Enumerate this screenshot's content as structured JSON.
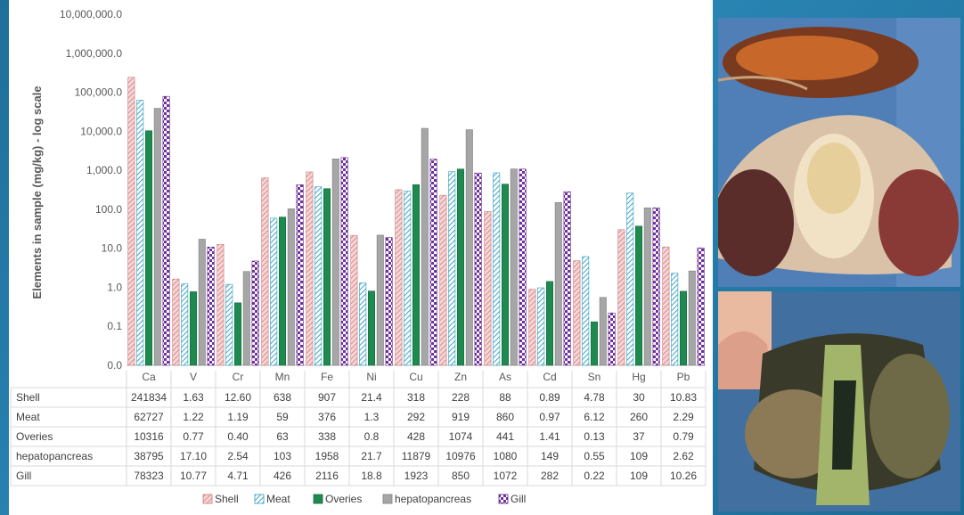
{
  "colors": {
    "background": "#2a86b5",
    "shell": "#e8a0a0",
    "meat": "#4fb5d6",
    "overies": "#1e8a4f",
    "hepatopancreas": "#a6a6a6",
    "gill": "#7030a0",
    "photo_tray": "#4c7ab0"
  },
  "chart_data": {
    "type": "bar",
    "ylabel": "Elements in sample (mg/kg) - log scale",
    "y_scale": "log",
    "yticks": [
      "10,000,000.0",
      "1,000,000.0",
      "100,000.0",
      "10,000.0",
      "1,000.0",
      "100.0",
      "10.0",
      "1.0",
      "0.1",
      "0.0"
    ],
    "categories": [
      "Ca",
      "V",
      "Cr",
      "Mn",
      "Fe",
      "Ni",
      "Cu",
      "Zn",
      "As",
      "Cd",
      "Sn",
      "Hg",
      "Pb"
    ],
    "series": [
      {
        "name": "Shell",
        "values": [
          241834,
          1.63,
          12.6,
          638,
          907,
          21.4,
          318,
          228,
          88,
          0.89,
          4.78,
          30,
          10.83
        ],
        "display": [
          "241834",
          "1.63",
          "12.60",
          "638",
          "907",
          "21.4",
          "318",
          "228",
          "88",
          "0.89",
          "4.78",
          "30",
          "10.83"
        ]
      },
      {
        "name": "Meat",
        "values": [
          62727,
          1.22,
          1.19,
          59,
          376,
          1.3,
          292,
          919,
          860,
          0.97,
          6.12,
          260,
          2.29
        ],
        "display": [
          "62727",
          "1.22",
          "1.19",
          "59",
          "376",
          "1.3",
          "292",
          "919",
          "860",
          "0.97",
          "6.12",
          "260",
          "2.29"
        ]
      },
      {
        "name": "Overies",
        "values": [
          10316,
          0.77,
          0.4,
          63,
          338,
          0.8,
          428,
          1074,
          441,
          1.41,
          0.13,
          37,
          0.79
        ],
        "display": [
          "10316",
          "0.77",
          "0.40",
          "63",
          "338",
          "0.8",
          "428",
          "1074",
          "441",
          "1.41",
          "0.13",
          "37",
          "0.79"
        ]
      },
      {
        "name": "hepatopancreas",
        "values": [
          38795,
          17.1,
          2.54,
          103,
          1958,
          21.7,
          11879,
          10976,
          1080,
          149,
          0.55,
          109,
          2.62
        ],
        "display": [
          "38795",
          "17.10",
          "2.54",
          "103",
          "1958",
          "21.7",
          "11879",
          "10976",
          "1080",
          "149",
          "0.55",
          "109",
          "2.62"
        ]
      },
      {
        "name": "Gill",
        "values": [
          78323,
          10.77,
          4.71,
          426,
          2116,
          18.8,
          1923,
          850,
          1072,
          282,
          0.22,
          109,
          10.26
        ],
        "display": [
          "78323",
          "10.77",
          "4.71",
          "426",
          "2116",
          "18.8",
          "1923",
          "850",
          "1072",
          "282",
          "0.22",
          "109",
          "10.26"
        ]
      }
    ],
    "legend": "bottom",
    "data_table": true
  }
}
